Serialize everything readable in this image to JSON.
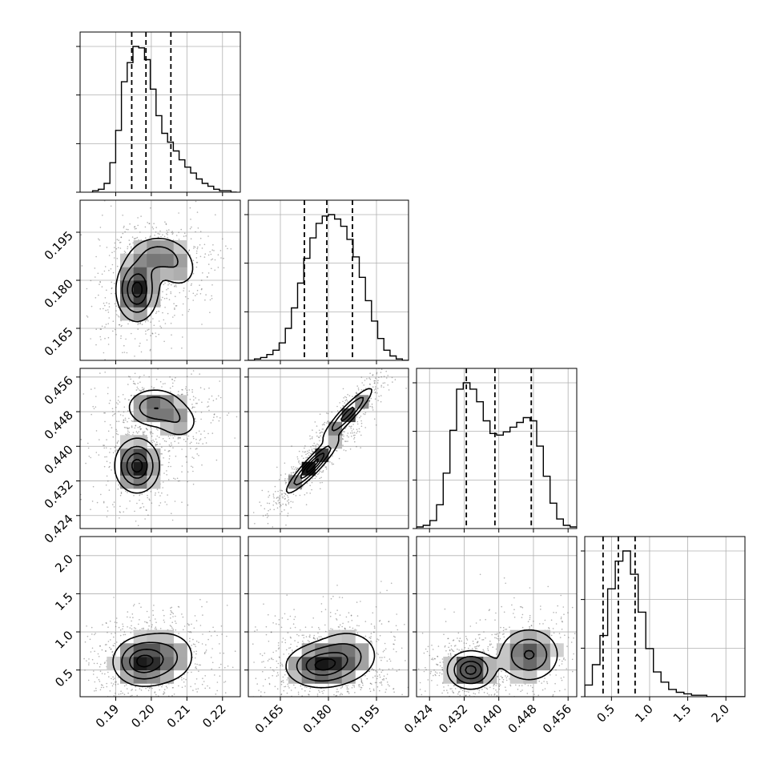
{
  "chart_data": {
    "type": "corner",
    "title": "",
    "parameters": [
      {
        "range": [
          0.18,
          0.225
        ],
        "ticks": [
          0.19,
          0.2,
          0.21,
          0.22
        ],
        "tick_labels": [
          "0.19",
          "0.20",
          "0.21",
          "0.22"
        ]
      },
      {
        "range": [
          0.155,
          0.205
        ],
        "ticks": [
          0.165,
          0.18,
          0.195
        ],
        "tick_labels": [
          "0.165",
          "0.180",
          "0.195"
        ]
      },
      {
        "range": [
          0.421,
          0.458
        ],
        "ticks": [
          0.424,
          0.432,
          0.44,
          0.448,
          0.456
        ],
        "tick_labels": [
          "0.424",
          "0.432",
          "0.440",
          "0.448",
          "0.456"
        ]
      },
      {
        "range": [
          0.15,
          2.25
        ],
        "ticks": [
          0.5,
          1.0,
          1.5,
          2.0
        ],
        "tick_labels": [
          "0.5",
          "1.0",
          "1.5",
          "2.0"
        ]
      }
    ],
    "histograms": [
      {
        "edges_range": [
          0.1835,
          0.224
        ],
        "counts": [
          1,
          2,
          6,
          20,
          42,
          75,
          88,
          99,
          98,
          90,
          70,
          52,
          40,
          34,
          28,
          22,
          17,
          13,
          9,
          6,
          4,
          2,
          1,
          1,
          0
        ],
        "quantiles": [
          0.1945,
          0.1985,
          0.2055
        ]
      },
      {
        "edges_range": [
          0.155,
          0.205
        ],
        "counts": [
          0,
          1,
          2,
          4,
          7,
          12,
          22,
          36,
          53,
          70,
          84,
          94,
          99,
          100,
          97,
          92,
          83,
          71,
          57,
          41,
          27,
          15,
          7,
          3,
          1,
          0
        ],
        "quantiles": [
          0.1725,
          0.1795,
          0.1875
        ]
      },
      {
        "edges_range": [
          0.421,
          0.458
        ],
        "counts": [
          1,
          2,
          5,
          15,
          35,
          62,
          88,
          92,
          88,
          80,
          68,
          60,
          59,
          61,
          64,
          67,
          70,
          68,
          52,
          33,
          16,
          6,
          2,
          1
        ],
        "quantiles": [
          0.4325,
          0.4391,
          0.4475
        ]
      },
      {
        "edges_range": [
          0.15,
          2.25
        ],
        "counts": [
          8,
          22,
          42,
          74,
          93,
          100,
          84,
          58,
          33,
          17,
          10,
          5,
          3,
          2,
          1,
          1,
          0,
          0,
          0,
          0,
          0
        ],
        "quantiles": [
          0.39,
          0.59,
          0.81
        ]
      }
    ],
    "pairs": [
      {
        "row": 1,
        "col": 0,
        "spread": [
          0.0065,
          0.0085
        ],
        "blobs": [
          {
            "c": [
              0.196,
              0.177
            ],
            "s": [
              0.0033,
              0.0055
            ],
            "w": 1.0,
            "rho": 0.0
          },
          {
            "c": [
              0.202,
              0.188
            ],
            "s": [
              0.0045,
              0.0035
            ],
            "w": 0.55,
            "rho": 0.0
          },
          {
            "c": [
              0.208,
              0.183
            ],
            "s": [
              0.0035,
              0.004
            ],
            "w": 0.3,
            "rho": 0.0
          }
        ]
      },
      {
        "row": 2,
        "col": 0,
        "spread": [
          0.0065,
          0.0055
        ],
        "blobs": [
          {
            "c": [
              0.196,
              0.4355
            ],
            "s": [
              0.0035,
              0.0035
            ],
            "w": 1.0,
            "rho": 0.0
          },
          {
            "c": [
              0.201,
              0.449
            ],
            "s": [
              0.0045,
              0.0025
            ],
            "w": 0.7,
            "rho": 0.0
          },
          {
            "c": [
              0.208,
              0.4455
            ],
            "s": [
              0.0035,
              0.0025
            ],
            "w": 0.35,
            "rho": 0.0
          }
        ]
      },
      {
        "row": 2,
        "col": 1,
        "spread": [
          0.0075,
          0.0045
        ],
        "blobs": [
          {
            "c": [
              0.175,
              0.4355
            ],
            "s": [
              0.0045,
              0.0035
            ],
            "w": 1.0,
            "rho": 0.92
          },
          {
            "c": [
              0.186,
              0.4475
            ],
            "s": [
              0.0045,
              0.0035
            ],
            "w": 0.8,
            "rho": 0.92
          }
        ]
      },
      {
        "row": 3,
        "col": 0,
        "spread": [
          0.0075,
          0.3
        ],
        "blobs": [
          {
            "c": [
              0.197,
              0.61
            ],
            "s": [
              0.0045,
              0.18
            ],
            "w": 1.0,
            "rho": 0.0
          },
          {
            "c": [
              0.205,
              0.68
            ],
            "s": [
              0.005,
              0.22
            ],
            "w": 0.5,
            "rho": 0.0
          }
        ]
      },
      {
        "row": 3,
        "col": 1,
        "spread": [
          0.009,
          0.3
        ],
        "blobs": [
          {
            "c": [
              0.177,
              0.55
            ],
            "s": [
              0.006,
              0.16
            ],
            "w": 1.0,
            "rho": 0.0
          },
          {
            "c": [
              0.186,
              0.7
            ],
            "s": [
              0.006,
              0.2
            ],
            "w": 0.6,
            "rho": 0.0
          }
        ]
      },
      {
        "row": 3,
        "col": 2,
        "spread": [
          0.0055,
          0.3
        ],
        "blobs": [
          {
            "c": [
              0.4335,
              0.5
            ],
            "s": [
              0.003,
              0.14
            ],
            "w": 1.0,
            "rho": 0.0
          },
          {
            "c": [
              0.447,
              0.7
            ],
            "s": [
              0.004,
              0.2
            ],
            "w": 0.75,
            "rho": 0.0
          }
        ]
      }
    ],
    "contour_levels": [
      0.2,
      0.45,
      0.72,
      0.92
    ],
    "grid": true,
    "colors": {
      "line": "#000000",
      "grid": "#b0b0b0",
      "scatter": "#555555"
    }
  }
}
